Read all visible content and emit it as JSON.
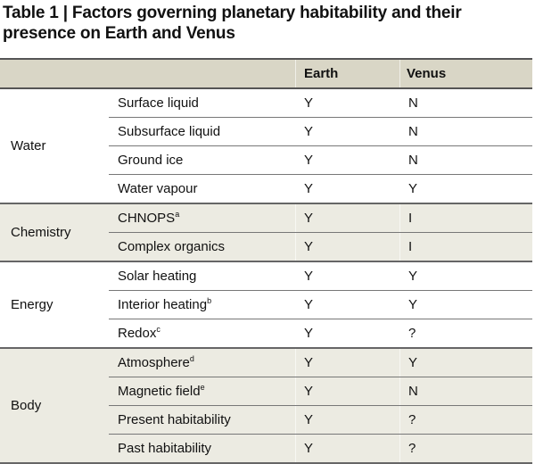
{
  "title": "Table 1 | Factors governing planetary habitability and their presence on Earth and Venus",
  "headers": [
    "",
    "",
    "Earth",
    "Venus"
  ],
  "groups": [
    {
      "name": "Water",
      "rows": [
        {
          "factor": "Surface liquid",
          "note": "",
          "earth": "Y",
          "venus": "N"
        },
        {
          "factor": "Subsurface liquid",
          "note": "",
          "earth": "Y",
          "venus": "N"
        },
        {
          "factor": "Ground ice",
          "note": "",
          "earth": "Y",
          "venus": "N"
        },
        {
          "factor": "Water vapour",
          "note": "",
          "earth": "Y",
          "venus": "Y"
        }
      ]
    },
    {
      "name": "Chemistry",
      "rows": [
        {
          "factor": "CHNOPS",
          "note": "a",
          "earth": "Y",
          "venus": "I"
        },
        {
          "factor": "Complex organics",
          "note": "",
          "earth": "Y",
          "venus": "I"
        }
      ]
    },
    {
      "name": "Energy",
      "rows": [
        {
          "factor": "Solar heating",
          "note": "",
          "earth": "Y",
          "venus": "Y"
        },
        {
          "factor": "Interior heating",
          "note": "b",
          "earth": "Y",
          "venus": "Y"
        },
        {
          "factor": "Redox",
          "note": "c",
          "earth": "Y",
          "venus": "?"
        }
      ]
    },
    {
      "name": "Body",
      "rows": [
        {
          "factor": "Atmosphere",
          "note": "d",
          "earth": "Y",
          "venus": "Y"
        },
        {
          "factor": "Magnetic field",
          "note": "e",
          "earth": "Y",
          "venus": "N"
        },
        {
          "factor": "Present habitability",
          "note": "",
          "earth": "Y",
          "venus": "?"
        },
        {
          "factor": "Past habitability",
          "note": "",
          "earth": "Y",
          "venus": "?"
        }
      ]
    }
  ]
}
